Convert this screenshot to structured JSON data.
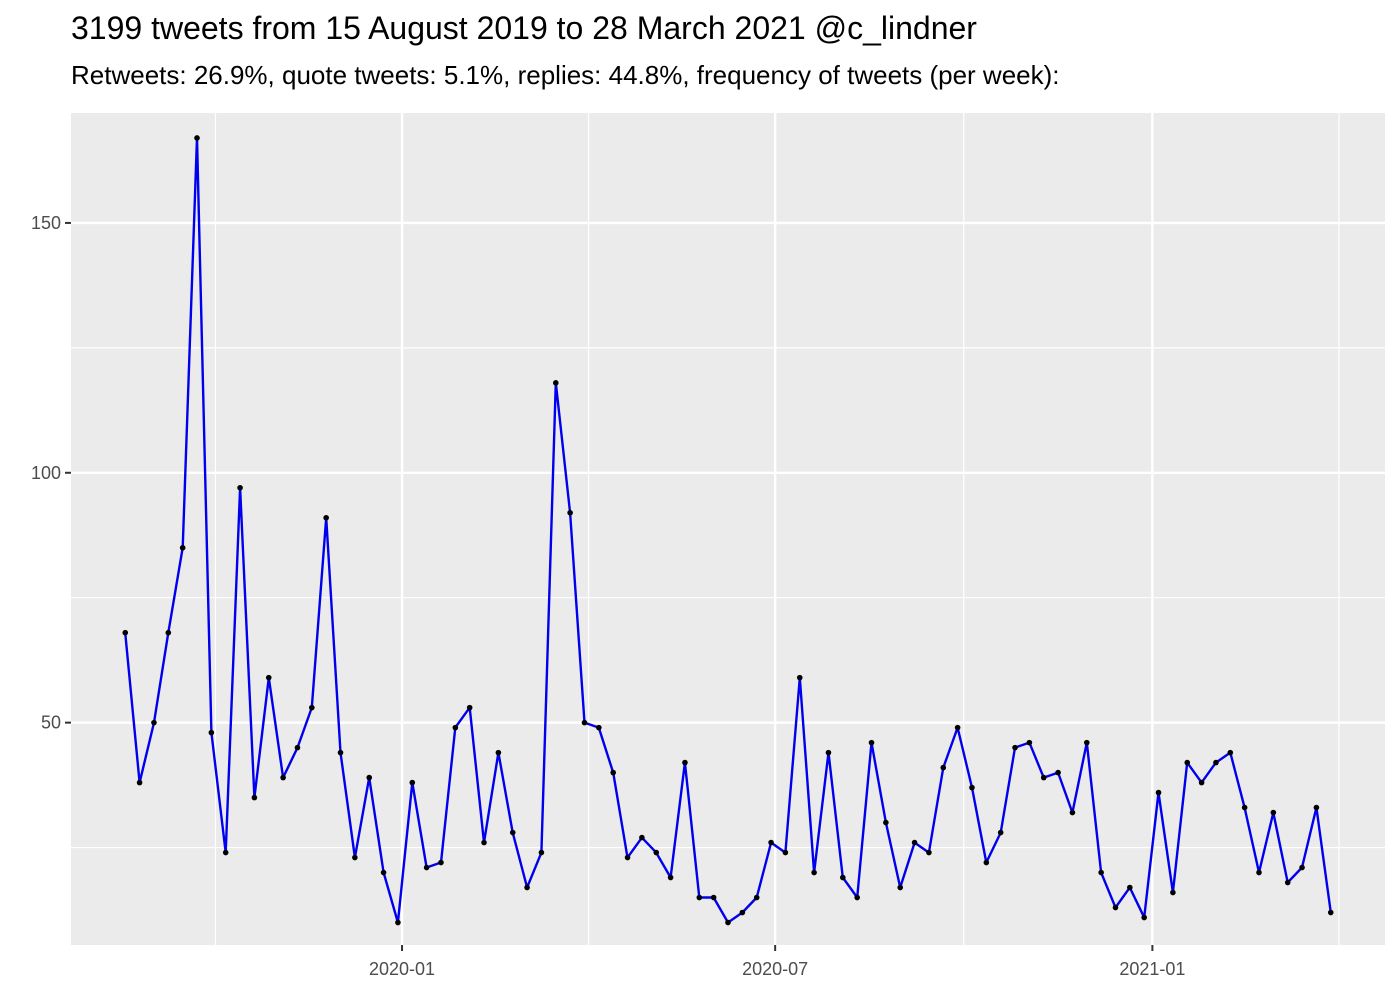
{
  "chart_data": {
    "type": "line",
    "title": "3199 tweets from 15 August 2019 to 28 March 2021 @c_lindner",
    "subtitle": "Retweets: 26.9%, quote tweets: 5.1%, replies: 44.8%, frequency of tweets (per week):",
    "xlabel": "",
    "ylabel": "",
    "x_ticks": [
      "2020-01",
      "2020-07",
      "2021-01"
    ],
    "y_ticks": [
      50,
      100,
      150
    ],
    "ylim": [
      5.5,
      172
    ],
    "grid": true,
    "legend": "none",
    "line_color": "#0000ee",
    "point_color": "#000000",
    "panel_color": "#ebebeb",
    "x_start": "2019-08-19",
    "x_step_days": 7,
    "values": [
      68,
      38,
      50,
      68,
      85,
      167,
      48,
      24,
      97,
      35,
      59,
      39,
      45,
      53,
      91,
      44,
      23,
      39,
      20,
      10,
      38,
      21,
      22,
      49,
      53,
      26,
      44,
      28,
      17,
      24,
      118,
      92,
      50,
      49,
      40,
      23,
      27,
      24,
      19,
      42,
      15,
      15,
      10,
      12,
      15,
      26,
      24,
      59,
      20,
      44,
      19,
      15,
      46,
      30,
      17,
      26,
      24,
      41,
      49,
      37,
      22,
      28,
      45,
      46,
      39,
      40,
      32,
      46,
      20,
      13,
      17,
      11,
      36,
      16,
      42,
      38,
      42,
      44,
      33,
      20,
      32,
      18,
      21,
      33,
      12
    ]
  }
}
